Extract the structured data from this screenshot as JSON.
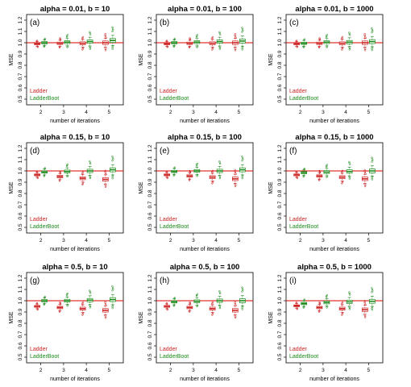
{
  "colors": {
    "ladder": "#cc2222",
    "ladderboot": "#1a8a1a",
    "refline": "#dd0000",
    "box_fill": "#ffffff"
  },
  "chart_data": [
    {
      "type": "box",
      "title": "alpha = 0.01, b = 10",
      "label": "(a)",
      "xlabel": "number of iterations",
      "ylabel": "MSE",
      "ylim": [
        0.45,
        1.25
      ],
      "yticks": [
        "0.5",
        "0.6",
        "0.7",
        "0.8",
        "0.9",
        "1.0",
        "1.1",
        "1.2"
      ],
      "categories": [
        "2",
        "3",
        "4",
        "5"
      ],
      "reference_line": 1.0,
      "legend": {
        "position": "bottom-left",
        "entries": [
          "Ladder",
          "LadderBoot"
        ]
      },
      "series": [
        {
          "name": "Ladder",
          "medians": [
            0.99,
            0.995,
            0.995,
            1.0
          ]
        },
        {
          "name": "LadderBoot",
          "medians": [
            1.0,
            1.005,
            1.01,
            1.02
          ]
        }
      ]
    },
    {
      "type": "box",
      "title": "alpha = 0.01, b = 100",
      "label": "(b)",
      "xlabel": "number of iterations",
      "ylabel": "MSE",
      "ylim": [
        0.45,
        1.25
      ],
      "yticks": [
        "0.5",
        "0.6",
        "0.7",
        "0.8",
        "0.9",
        "1.0",
        "1.1",
        "1.2"
      ],
      "categories": [
        "2",
        "3",
        "4",
        "5"
      ],
      "reference_line": 1.0,
      "legend": {
        "position": "bottom-left",
        "entries": [
          "Ladder",
          "LadderBoot"
        ]
      },
      "series": [
        {
          "name": "Ladder",
          "medians": [
            0.99,
            0.995,
            0.995,
            1.0
          ]
        },
        {
          "name": "LadderBoot",
          "medians": [
            1.0,
            1.005,
            1.01,
            1.015
          ]
        }
      ]
    },
    {
      "type": "box",
      "title": "alpha = 0.01, b = 1000",
      "label": "(c)",
      "xlabel": "number of iterations",
      "ylabel": "MSE",
      "ylim": [
        0.45,
        1.25
      ],
      "yticks": [
        "0.5",
        "0.6",
        "0.7",
        "0.8",
        "0.9",
        "1.0",
        "1.1",
        "1.2"
      ],
      "categories": [
        "2",
        "3",
        "4",
        "5"
      ],
      "reference_line": 1.0,
      "legend": {
        "position": "bottom-left",
        "entries": [
          "Ladder",
          "LadderBoot"
        ]
      },
      "series": [
        {
          "name": "Ladder",
          "medians": [
            0.99,
            0.995,
            0.995,
            1.0
          ]
        },
        {
          "name": "LadderBoot",
          "medians": [
            0.995,
            1.005,
            1.005,
            1.01
          ]
        }
      ]
    },
    {
      "type": "box",
      "title": "alpha = 0.15, b = 10",
      "label": "(d)",
      "xlabel": "number of iterations",
      "ylabel": "MSE",
      "ylim": [
        0.45,
        1.25
      ],
      "yticks": [
        "0.5",
        "0.6",
        "0.7",
        "0.8",
        "0.9",
        "1.0",
        "1.1",
        "1.2"
      ],
      "categories": [
        "2",
        "3",
        "4",
        "5"
      ],
      "reference_line": 1.0,
      "legend": {
        "position": "bottom-left",
        "entries": [
          "Ladder",
          "LadderBoot"
        ]
      },
      "series": [
        {
          "name": "Ladder",
          "medians": [
            0.965,
            0.95,
            0.935,
            0.925
          ]
        },
        {
          "name": "LadderBoot",
          "medians": [
            0.99,
            0.995,
            1.0,
            1.01
          ]
        }
      ]
    },
    {
      "type": "box",
      "title": "alpha = 0.15, b = 100",
      "label": "(e)",
      "xlabel": "number of iterations",
      "ylabel": "MSE",
      "ylim": [
        0.45,
        1.25
      ],
      "yticks": [
        "0.5",
        "0.6",
        "0.7",
        "0.8",
        "0.9",
        "1.0",
        "1.1",
        "1.2"
      ],
      "categories": [
        "2",
        "3",
        "4",
        "5"
      ],
      "reference_line": 1.0,
      "legend": {
        "position": "bottom-left",
        "entries": [
          "Ladder",
          "LadderBoot"
        ]
      },
      "series": [
        {
          "name": "Ladder",
          "medians": [
            0.965,
            0.955,
            0.945,
            0.93
          ]
        },
        {
          "name": "LadderBoot",
          "medians": [
            0.995,
            1.0,
            1.0,
            1.01
          ]
        }
      ]
    },
    {
      "type": "box",
      "title": "alpha = 0.15, b = 1000",
      "label": "(f)",
      "xlabel": "number of iterations",
      "ylabel": "MSE",
      "ylim": [
        0.45,
        1.25
      ],
      "yticks": [
        "0.5",
        "0.6",
        "0.7",
        "0.8",
        "0.9",
        "1.0",
        "1.1",
        "1.2"
      ],
      "categories": [
        "2",
        "3",
        "4",
        "5"
      ],
      "reference_line": 1.0,
      "legend": {
        "position": "bottom-left",
        "entries": [
          "Ladder",
          "LadderBoot"
        ]
      },
      "series": [
        {
          "name": "Ladder",
          "medians": [
            0.965,
            0.955,
            0.945,
            0.93
          ]
        },
        {
          "name": "LadderBoot",
          "medians": [
            0.985,
            0.99,
            0.995,
            1.0
          ]
        }
      ]
    },
    {
      "type": "box",
      "title": "alpha = 0.5, b = 10",
      "label": "(g)",
      "xlabel": "number of iterations",
      "ylabel": "MSE",
      "ylim": [
        0.45,
        1.25
      ],
      "yticks": [
        "0.5",
        "0.6",
        "0.7",
        "0.8",
        "0.9",
        "1.0",
        "1.1",
        "1.2"
      ],
      "categories": [
        "2",
        "3",
        "4",
        "5"
      ],
      "reference_line": 1.0,
      "legend": {
        "position": "bottom-left",
        "entries": [
          "Ladder",
          "LadderBoot"
        ]
      },
      "series": [
        {
          "name": "Ladder",
          "medians": [
            0.95,
            0.94,
            0.93,
            0.915
          ]
        },
        {
          "name": "LadderBoot",
          "medians": [
            1.0,
            1.0,
            1.005,
            1.01
          ]
        }
      ]
    },
    {
      "type": "box",
      "title": "alpha = 0.5, b = 100",
      "label": "(h)",
      "xlabel": "number of iterations",
      "ylabel": "MSE",
      "ylim": [
        0.45,
        1.25
      ],
      "yticks": [
        "0.5",
        "0.6",
        "0.7",
        "0.8",
        "0.9",
        "1.0",
        "1.1",
        "1.2"
      ],
      "categories": [
        "2",
        "3",
        "4",
        "5"
      ],
      "reference_line": 1.0,
      "legend": {
        "position": "bottom-left",
        "entries": [
          "Ladder",
          "LadderBoot"
        ]
      },
      "series": [
        {
          "name": "Ladder",
          "medians": [
            0.95,
            0.94,
            0.93,
            0.915
          ]
        },
        {
          "name": "LadderBoot",
          "medians": [
            0.99,
            0.995,
            1.0,
            1.0
          ]
        }
      ]
    },
    {
      "type": "box",
      "title": "alpha = 0.5, b = 1000",
      "label": "(i)",
      "xlabel": "number of iterations",
      "ylabel": "MSE",
      "ylim": [
        0.45,
        1.25
      ],
      "yticks": [
        "0.5",
        "0.6",
        "0.7",
        "0.8",
        "0.9",
        "1.0",
        "1.1",
        "1.2"
      ],
      "categories": [
        "2",
        "3",
        "4",
        "5"
      ],
      "reference_line": 1.0,
      "legend": {
        "position": "bottom-left",
        "entries": [
          "Ladder",
          "LadderBoot"
        ]
      },
      "series": [
        {
          "name": "Ladder",
          "medians": [
            0.955,
            0.94,
            0.93,
            0.92
          ]
        },
        {
          "name": "LadderBoot",
          "medians": [
            0.975,
            0.985,
            0.99,
            0.995
          ]
        }
      ]
    }
  ]
}
